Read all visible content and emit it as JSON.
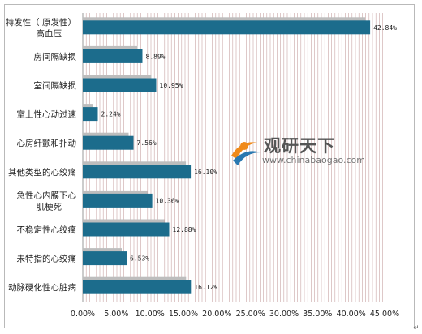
{
  "chart_data": {
    "type": "bar",
    "orientation": "horizontal",
    "categories": [
      "特发性（ 原发性） 高血压",
      "房间隔缺损",
      "室间隔缺损",
      "室上性心动过速",
      "心房纤颤和扑动",
      "其他类型的心绞痛",
      "急性心内膜下心肌梗死",
      "不稳定性心绞痛",
      "未特指的心绞痛",
      "动脉硬化性心脏病"
    ],
    "values": [
      42.84,
      8.89,
      10.95,
      2.24,
      7.56,
      16.1,
      10.36,
      12.88,
      6.53,
      16.12
    ],
    "value_labels": [
      "42.84%",
      "8.89%",
      "10.95%",
      "2.24%",
      "7.56%",
      "16.10%",
      "10.36%",
      "12.88%",
      "6.53%",
      "16.12%"
    ],
    "x_ticks": [
      "0.00%",
      "5.00%",
      "10.00%",
      "15.00%",
      "20.00%",
      "25.00%",
      "30.00%",
      "35.00%",
      "40.00%",
      "45.00%"
    ],
    "xlim": [
      0,
      45
    ],
    "grid": "vertical striped",
    "colors": {
      "bar": "#1c6c8c",
      "bar_shadow": "#bdbdbd",
      "grid": "#c9a4a4"
    }
  },
  "watermark": {
    "brand": "观研天下",
    "site": "www.chinabaogao.com"
  },
  "corner_mark": "↵"
}
